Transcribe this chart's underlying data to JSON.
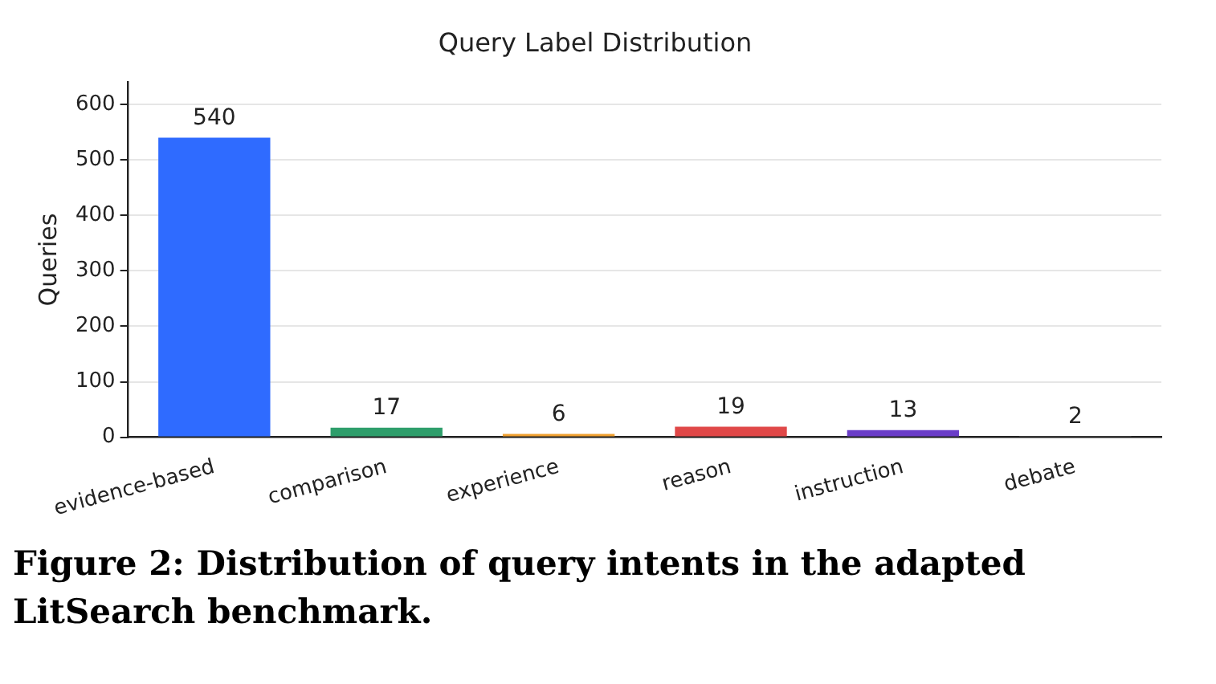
{
  "chart_data": {
    "type": "bar",
    "title": "Query Label Distribution",
    "ylabel": "Queries",
    "categories": [
      "evidence-based",
      "comparison",
      "experience",
      "reason",
      "instruction",
      "debate"
    ],
    "values": [
      540,
      17,
      6,
      19,
      13,
      2
    ],
    "colors": [
      "#2f6bff",
      "#2e9e6b",
      "#f0a030",
      "#e04848",
      "#6a3dc8",
      "#8a8a8a"
    ],
    "ylim": [
      0,
      640
    ],
    "yticks": [
      0,
      100,
      200,
      300,
      400,
      500,
      600
    ],
    "grid": "y",
    "data_labels": true,
    "legend": false,
    "annotations": [
      "Figure 2: Distribution of query intents in the adapted LitSearch benchmark."
    ]
  }
}
